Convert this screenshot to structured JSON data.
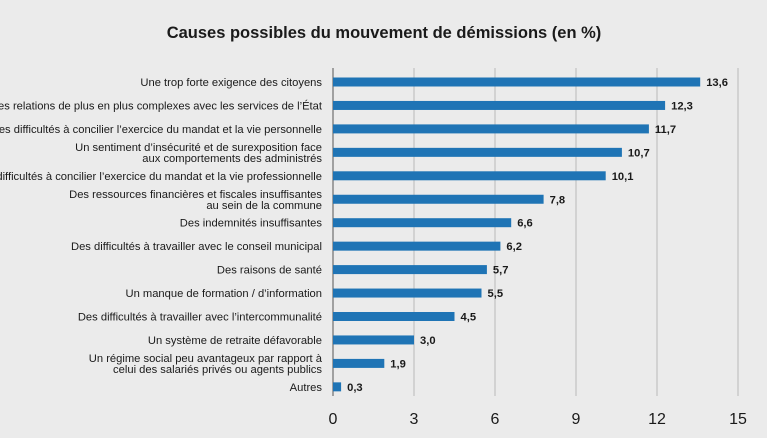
{
  "chart_data": {
    "type": "bar",
    "orientation": "horizontal",
    "title": "Causes possibles du mouvement de démissions (en %)",
    "xlabel": "",
    "ylabel": "",
    "xlim": [
      0,
      15
    ],
    "xticks": [
      0,
      3,
      6,
      9,
      12,
      15
    ],
    "grid": true,
    "bar_color": "#1f74b5",
    "categories": [
      [
        "Une trop forte exigence des citoyens"
      ],
      [
        "Des relations de plus en plus complexes avec les services de l’État"
      ],
      [
        "Des difficultés à concilier l’exercice du mandat et la vie personnelle"
      ],
      [
        "Un sentiment d’insécurité et de surexposition face",
        "aux comportements des administrés"
      ],
      [
        "Des difficultés à concilier l’exercice du mandat et la vie professionnelle"
      ],
      [
        "Des ressources financières et fiscales insuffisantes",
        "au sein de la commune"
      ],
      [
        "Des indemnités insuffisantes"
      ],
      [
        "Des difficultés à travailler avec le conseil municipal"
      ],
      [
        "Des raisons de santé"
      ],
      [
        "Un manque de formation / d’information"
      ],
      [
        "Des difficultés à travailler avec l’intercommunalité"
      ],
      [
        "Un système de retraite défavorable"
      ],
      [
        "Un régime social peu avantageux par rapport à",
        "celui des salariés privés ou agents publics"
      ],
      [
        "Autres"
      ]
    ],
    "values": [
      13.6,
      12.3,
      11.7,
      10.7,
      10.1,
      7.8,
      6.6,
      6.2,
      5.7,
      5.5,
      4.5,
      3.0,
      1.9,
      0.3
    ],
    "value_labels": [
      "13,6",
      "12,3",
      "11,7",
      "10,7",
      "10,1",
      "7,8",
      "6,6",
      "6,2",
      "5,7",
      "5,5",
      "4,5",
      "3,0",
      "1,9",
      "0,3"
    ]
  }
}
